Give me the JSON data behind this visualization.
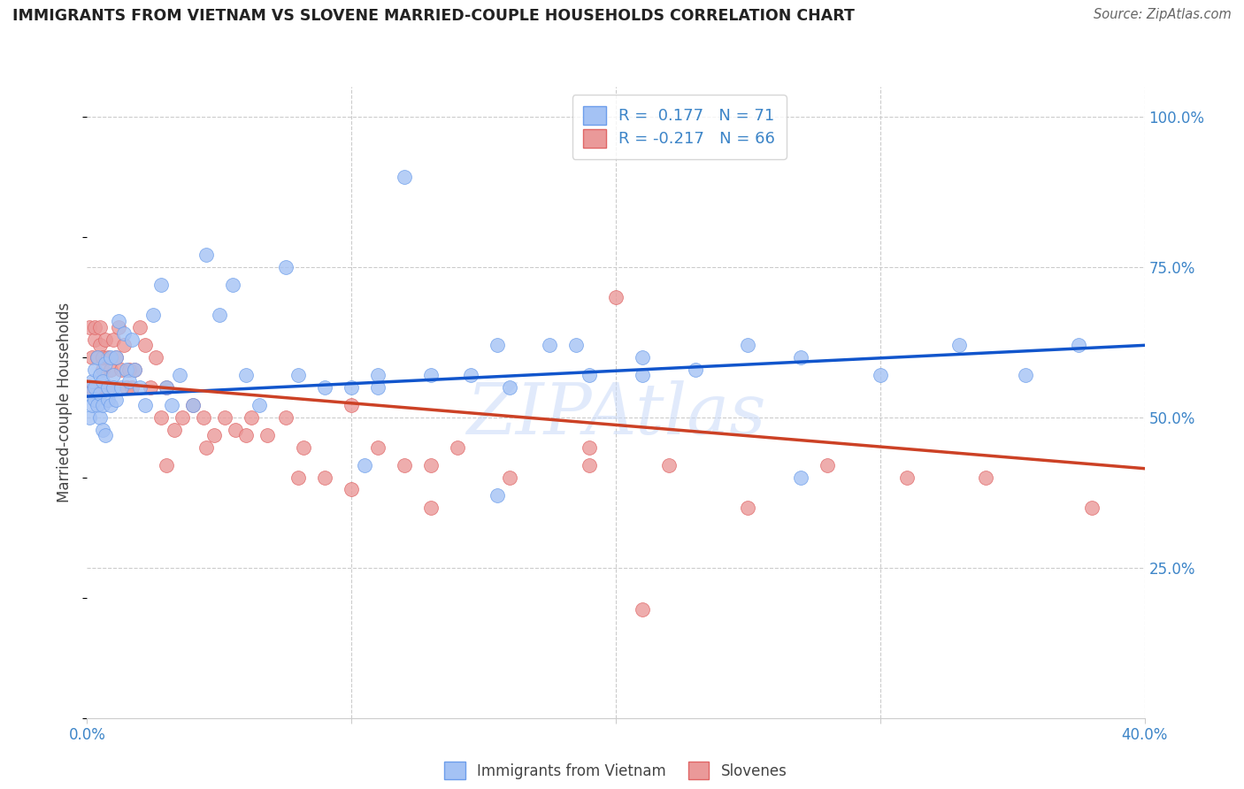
{
  "title": "IMMIGRANTS FROM VIETNAM VS SLOVENE MARRIED-COUPLE HOUSEHOLDS CORRELATION CHART",
  "source": "Source: ZipAtlas.com",
  "ylabel": "Married-couple Households",
  "legend_label1": "R =  0.177   N = 71",
  "legend_label2": "R = -0.217   N = 66",
  "legend_label1_bottom": "Immigrants from Vietnam",
  "legend_label2_bottom": "Slovenes",
  "blue_color": "#a4c2f4",
  "blue_edge": "#6d9eeb",
  "pink_color": "#ea9999",
  "pink_edge": "#e06666",
  "trend_blue": "#1155cc",
  "trend_pink": "#cc4125",
  "xmin": 0.0,
  "xmax": 0.4,
  "ymin": 0.0,
  "ymax": 1.05,
  "blue_trend_x": [
    0.0,
    0.4
  ],
  "blue_trend_y": [
    0.535,
    0.62
  ],
  "pink_trend_x": [
    0.0,
    0.4
  ],
  "pink_trend_y": [
    0.56,
    0.415
  ],
  "blue_x": [
    0.001,
    0.001,
    0.002,
    0.002,
    0.003,
    0.003,
    0.003,
    0.004,
    0.004,
    0.005,
    0.005,
    0.005,
    0.006,
    0.006,
    0.006,
    0.007,
    0.007,
    0.008,
    0.008,
    0.009,
    0.009,
    0.01,
    0.01,
    0.011,
    0.011,
    0.012,
    0.013,
    0.014,
    0.015,
    0.016,
    0.017,
    0.018,
    0.02,
    0.022,
    0.025,
    0.028,
    0.03,
    0.032,
    0.035,
    0.04,
    0.045,
    0.05,
    0.055,
    0.06,
    0.065,
    0.075,
    0.08,
    0.09,
    0.1,
    0.105,
    0.11,
    0.12,
    0.13,
    0.145,
    0.16,
    0.175,
    0.19,
    0.21,
    0.23,
    0.25,
    0.27,
    0.11,
    0.155,
    0.185,
    0.21,
    0.27,
    0.3,
    0.33,
    0.355,
    0.375,
    0.155
  ],
  "blue_y": [
    0.54,
    0.5,
    0.56,
    0.52,
    0.55,
    0.58,
    0.53,
    0.6,
    0.52,
    0.57,
    0.5,
    0.54,
    0.48,
    0.56,
    0.52,
    0.59,
    0.47,
    0.53,
    0.55,
    0.6,
    0.52,
    0.57,
    0.55,
    0.53,
    0.6,
    0.66,
    0.55,
    0.64,
    0.58,
    0.56,
    0.63,
    0.58,
    0.55,
    0.52,
    0.67,
    0.72,
    0.55,
    0.52,
    0.57,
    0.52,
    0.77,
    0.67,
    0.72,
    0.57,
    0.52,
    0.75,
    0.57,
    0.55,
    0.55,
    0.42,
    0.55,
    0.9,
    0.57,
    0.57,
    0.55,
    0.62,
    0.57,
    0.6,
    0.58,
    0.62,
    0.4,
    0.57,
    0.62,
    0.62,
    0.57,
    0.6,
    0.57,
    0.62,
    0.57,
    0.62,
    0.37
  ],
  "pink_x": [
    0.001,
    0.001,
    0.002,
    0.002,
    0.003,
    0.003,
    0.004,
    0.004,
    0.005,
    0.005,
    0.006,
    0.006,
    0.007,
    0.007,
    0.008,
    0.008,
    0.009,
    0.01,
    0.011,
    0.012,
    0.013,
    0.014,
    0.015,
    0.016,
    0.017,
    0.018,
    0.02,
    0.022,
    0.024,
    0.026,
    0.028,
    0.03,
    0.033,
    0.036,
    0.04,
    0.044,
    0.048,
    0.052,
    0.056,
    0.062,
    0.068,
    0.075,
    0.082,
    0.09,
    0.1,
    0.11,
    0.12,
    0.13,
    0.14,
    0.03,
    0.045,
    0.06,
    0.08,
    0.1,
    0.13,
    0.16,
    0.19,
    0.22,
    0.25,
    0.28,
    0.31,
    0.34,
    0.38,
    0.21,
    0.19,
    0.2
  ],
  "pink_y": [
    0.55,
    0.65,
    0.6,
    0.55,
    0.63,
    0.65,
    0.6,
    0.55,
    0.65,
    0.62,
    0.58,
    0.6,
    0.55,
    0.63,
    0.6,
    0.55,
    0.58,
    0.63,
    0.6,
    0.65,
    0.58,
    0.62,
    0.55,
    0.58,
    0.55,
    0.58,
    0.65,
    0.62,
    0.55,
    0.6,
    0.5,
    0.55,
    0.48,
    0.5,
    0.52,
    0.5,
    0.47,
    0.5,
    0.48,
    0.5,
    0.47,
    0.5,
    0.45,
    0.4,
    0.52,
    0.45,
    0.42,
    0.42,
    0.45,
    0.42,
    0.45,
    0.47,
    0.4,
    0.38,
    0.35,
    0.4,
    0.45,
    0.42,
    0.35,
    0.42,
    0.4,
    0.4,
    0.35,
    0.18,
    0.42,
    0.7
  ]
}
